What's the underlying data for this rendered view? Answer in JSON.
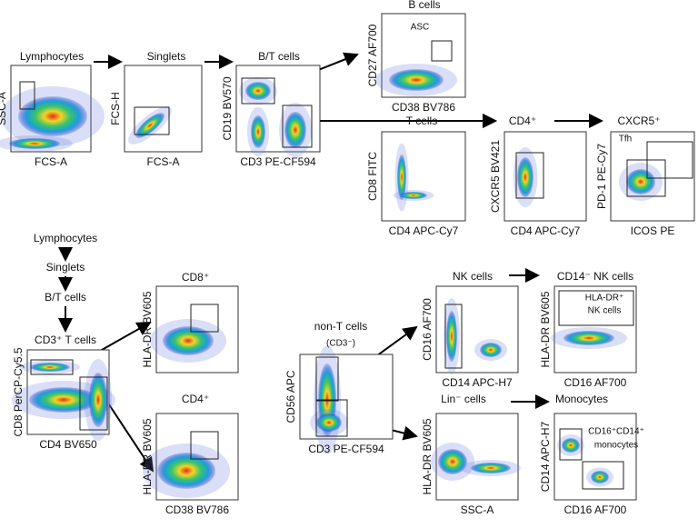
{
  "flow_labels": [
    "Lymphocytes",
    "Singlets",
    "B/T cells"
  ],
  "panels": [
    {
      "title": "Lymphocytes",
      "x_label": "FCS-A",
      "y_label": "SSC-A"
    },
    {
      "title": "Singlets",
      "x_label": "FCS-A",
      "y_label": "FCS-H"
    },
    {
      "title": "B/T cells",
      "x_label": "CD3 PE-CF594",
      "y_label": "CD19 BV570"
    },
    {
      "title": "B cells",
      "x_label": "CD38 BV786",
      "y_label": "CD27 AF700",
      "annotations": [
        "ASC"
      ]
    },
    {
      "title": "T cells",
      "x_label": "CD4 APC-Cy7",
      "y_label": "CD8 FITC"
    },
    {
      "title": "CD4⁺",
      "x_label": "CD4 APC-Cy7",
      "y_label": "CXCR5 BV421"
    },
    {
      "title": "CXCR5⁺",
      "x_label": "ICOS PE",
      "y_label": "PD-1 PE-Cy7",
      "annotations": [
        "Tfh"
      ]
    },
    {
      "title": "CD3⁺ T cells",
      "x_label": "CD4 BV650",
      "y_label": "CD8 PerCP-Cy5.5"
    },
    {
      "title": "CD8⁺",
      "y_label": "HLA-DR BV605"
    },
    {
      "title": "CD4⁺",
      "x_label": "CD38 BV786",
      "y_label": "HLA-DR BV605"
    },
    {
      "title": "non-T cells",
      "x_label": "CD3 PE-CF594",
      "y_label": "CD56 APC",
      "annotations": [
        "(CD3⁻)"
      ]
    },
    {
      "title": "NK cells",
      "x_label": "CD14 APC-H7",
      "y_label": "CD16 AF700"
    },
    {
      "title": "CD14⁻ NK cells",
      "x_label": "CD16 AF700",
      "y_label": "HLA-DR BV605",
      "annotations": [
        "HLA-DR⁺",
        "NK cells"
      ]
    },
    {
      "title": "Lin⁻ cells",
      "x_label": "SSC-A",
      "y_label": "HLA-DR BV605"
    },
    {
      "title": "Monocytes",
      "x_label": "CD16 AF700",
      "y_label": "CD14 APC-H7",
      "annotations": [
        "CD16⁺CD14⁺",
        "monocytes"
      ]
    }
  ]
}
